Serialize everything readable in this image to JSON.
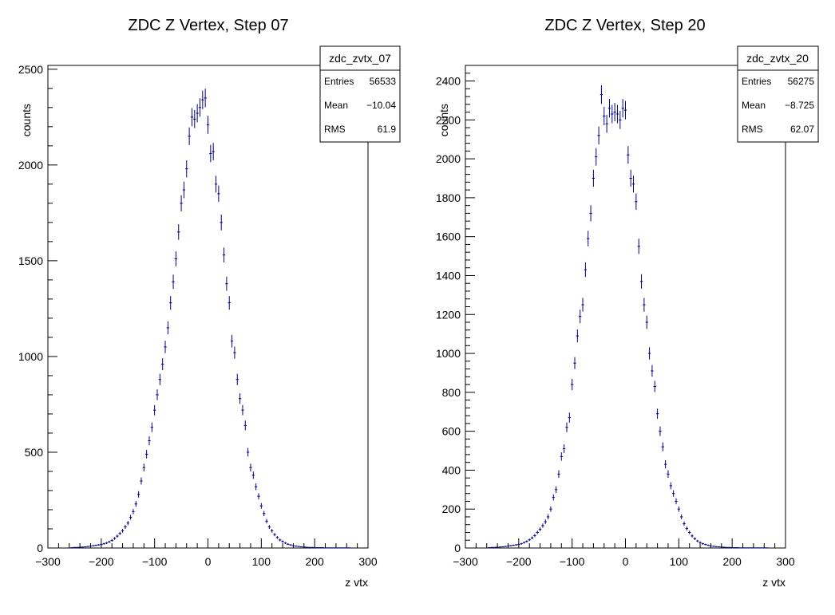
{
  "chart_data": [
    {
      "type": "scatter",
      "title": "ZDC Z Vertex, Step 07",
      "xlabel": "z vtx",
      "ylabel": "counts",
      "xlim": [
        -300,
        300
      ],
      "ylim": [
        0,
        2520
      ],
      "x_ticks": [
        -300,
        -200,
        -100,
        0,
        100,
        200,
        300
      ],
      "x_tick_labels": [
        "−300",
        "−200",
        "−100",
        "0",
        "100",
        "200",
        "300"
      ],
      "y_ticks": [
        0,
        500,
        1000,
        1500,
        2000,
        2500
      ],
      "y_tick_labels": [
        "0",
        "500",
        "1000",
        "1500",
        "2000",
        "2500"
      ],
      "grid": false,
      "legend": "none",
      "stats": {
        "name": "zdc_zvtx_07",
        "rows": [
          {
            "label": "Entries",
            "value": "56533"
          },
          {
            "label": "Mean",
            "value": "−10.04"
          },
          {
            "label": "RMS",
            "value": "61.9"
          }
        ]
      },
      "marker_color": "#000080",
      "series": [
        {
          "x": [
            -255,
            -250,
            -245,
            -240,
            -235,
            -230,
            -225,
            -220,
            -215,
            -210,
            -205,
            -200,
            -195,
            -190,
            -185,
            -180,
            -175,
            -170,
            -165,
            -160,
            -155,
            -150,
            -145,
            -140,
            -135,
            -130,
            -125,
            -120,
            -115,
            -110,
            -105,
            -100,
            -95,
            -90,
            -85,
            -80,
            -75,
            -70,
            -65,
            -60,
            -55,
            -50,
            -45,
            -40,
            -35,
            -30,
            -25,
            -20,
            -15,
            -10,
            -5,
            0,
            5,
            10,
            15,
            20,
            25,
            30,
            35,
            40,
            45,
            50,
            55,
            60,
            65,
            70,
            75,
            80,
            85,
            90,
            95,
            100,
            105,
            110,
            115,
            120,
            125,
            130,
            135,
            140,
            145,
            150,
            155,
            160,
            165,
            170,
            175,
            180,
            185,
            190,
            195,
            200,
            205,
            210,
            215,
            220,
            225,
            230,
            235,
            240,
            245,
            250,
            255,
            260,
            265
          ],
          "y": [
            2,
            3,
            3,
            4,
            5,
            6,
            8,
            10,
            12,
            14,
            16,
            18,
            22,
            26,
            32,
            40,
            50,
            62,
            76,
            90,
            110,
            130,
            160,
            190,
            230,
            280,
            350,
            420,
            490,
            560,
            630,
            720,
            800,
            880,
            960,
            1050,
            1150,
            1280,
            1390,
            1510,
            1650,
            1800,
            1870,
            1980,
            2150,
            2250,
            2240,
            2270,
            2300,
            2340,
            2350,
            2210,
            2060,
            2070,
            1900,
            1850,
            1700,
            1530,
            1380,
            1280,
            1080,
            1020,
            880,
            780,
            720,
            640,
            500,
            420,
            380,
            320,
            270,
            220,
            180,
            140,
            110,
            90,
            70,
            55,
            42,
            34,
            26,
            20,
            16,
            12,
            10,
            8,
            6,
            5,
            4,
            3,
            3,
            2,
            2,
            2,
            2,
            1,
            1,
            1,
            1,
            1,
            1,
            1,
            1,
            1,
            1
          ]
        }
      ]
    },
    {
      "type": "scatter",
      "title": "ZDC Z Vertex, Step 20",
      "xlabel": "z vtx",
      "ylabel": "counts",
      "xlim": [
        -300,
        300
      ],
      "ylim": [
        0,
        2480
      ],
      "x_ticks": [
        -300,
        -200,
        -100,
        0,
        100,
        200,
        300
      ],
      "x_tick_labels": [
        "−300",
        "−200",
        "−100",
        "0",
        "100",
        "200",
        "300"
      ],
      "y_ticks": [
        0,
        200,
        400,
        600,
        800,
        1000,
        1200,
        1400,
        1600,
        1800,
        2000,
        2200,
        2400
      ],
      "y_tick_labels": [
        "0",
        "200",
        "400",
        "600",
        "800",
        "1000",
        "1200",
        "1400",
        "1600",
        "1800",
        "2000",
        "2200",
        "2400"
      ],
      "grid": false,
      "legend": "none",
      "stats": {
        "name": "zdc_zvtx_20",
        "rows": [
          {
            "label": "Entries",
            "value": "56275"
          },
          {
            "label": "Mean",
            "value": "−8.725"
          },
          {
            "label": "RMS",
            "value": "62.07"
          }
        ]
      },
      "marker_color": "#000080",
      "series": [
        {
          "x": [
            -255,
            -250,
            -245,
            -240,
            -235,
            -230,
            -225,
            -220,
            -215,
            -210,
            -205,
            -200,
            -195,
            -190,
            -185,
            -180,
            -175,
            -170,
            -165,
            -160,
            -155,
            -150,
            -145,
            -140,
            -135,
            -130,
            -125,
            -120,
            -115,
            -110,
            -105,
            -100,
            -95,
            -90,
            -85,
            -80,
            -75,
            -70,
            -65,
            -60,
            -55,
            -50,
            -45,
            -40,
            -35,
            -30,
            -25,
            -20,
            -15,
            -10,
            -5,
            0,
            5,
            10,
            15,
            20,
            25,
            30,
            35,
            40,
            45,
            50,
            55,
            60,
            65,
            70,
            75,
            80,
            85,
            90,
            95,
            100,
            105,
            110,
            115,
            120,
            125,
            130,
            135,
            140,
            145,
            150,
            155,
            160,
            165,
            170,
            175,
            180,
            185,
            190,
            195,
            200,
            205,
            210,
            215,
            220,
            225,
            230,
            235,
            240,
            245,
            250,
            255,
            260,
            265
          ],
          "y": [
            2,
            3,
            3,
            4,
            5,
            6,
            8,
            10,
            12,
            14,
            16,
            18,
            22,
            28,
            34,
            42,
            52,
            64,
            80,
            96,
            115,
            135,
            160,
            200,
            260,
            300,
            380,
            470,
            510,
            620,
            670,
            840,
            950,
            1090,
            1190,
            1250,
            1430,
            1590,
            1720,
            1900,
            2010,
            2120,
            2330,
            2220,
            2180,
            2260,
            2230,
            2240,
            2230,
            2200,
            2260,
            2250,
            2020,
            1900,
            1870,
            1780,
            1550,
            1370,
            1250,
            1160,
            1000,
            910,
            830,
            690,
            600,
            520,
            430,
            380,
            320,
            280,
            240,
            200,
            160,
            125,
            100,
            80,
            62,
            48,
            36,
            28,
            22,
            18,
            14,
            11,
            9,
            7,
            6,
            5,
            4,
            3,
            3,
            2,
            2,
            2,
            1,
            1,
            1,
            1,
            1,
            1,
            1,
            1,
            1,
            1,
            1
          ]
        }
      ]
    }
  ]
}
